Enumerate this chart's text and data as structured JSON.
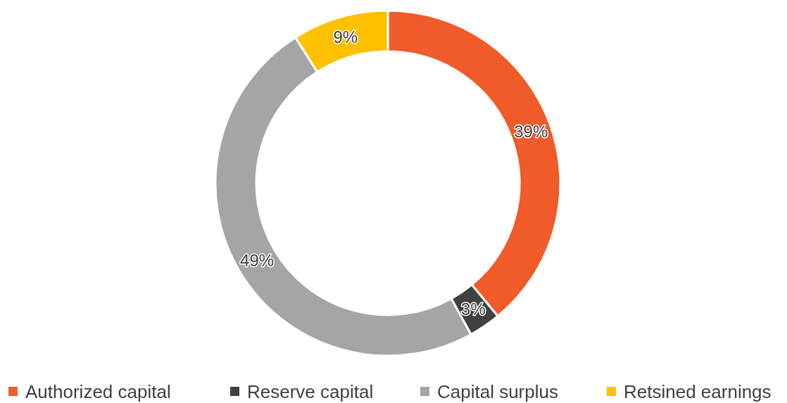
{
  "chart_data": {
    "type": "donut",
    "categories": [
      "Authorized capital",
      "Reserve capital",
      "Capital surplus",
      "Retsined earnings"
    ],
    "values": [
      39,
      3,
      49,
      9
    ],
    "colors": [
      "#f15a29",
      "#404040",
      "#a5a5a5",
      "#ffc000"
    ],
    "value_labels": [
      "39%",
      "3%",
      "49%",
      "9%"
    ],
    "legend": "bottom"
  }
}
